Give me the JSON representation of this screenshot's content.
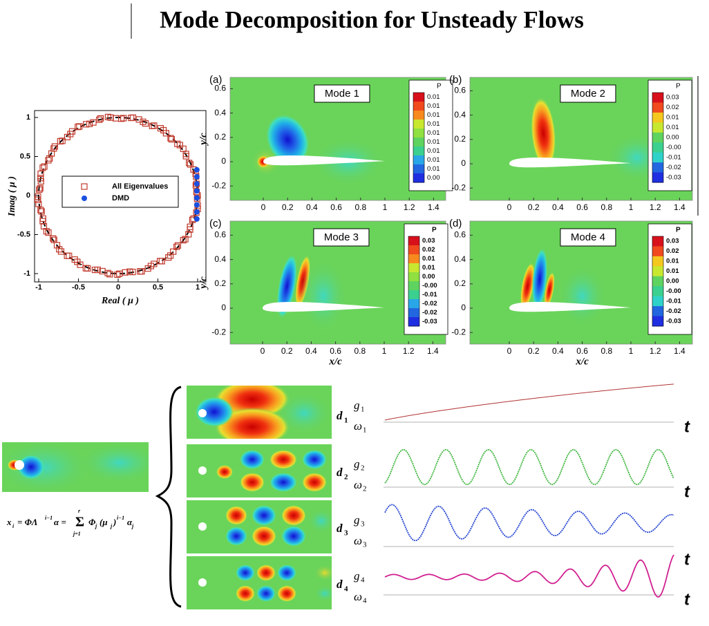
{
  "title": "Mode Decomposition for Unsteady Flows",
  "eig_plot": {
    "y_label": "Imag ( μ )",
    "x_label": "Real ( μ )",
    "xticks": [
      "-1",
      "-0.5",
      "0",
      "0.5",
      "1"
    ],
    "yticks": [
      "1",
      "0.5",
      "0",
      "-0.5",
      "-1"
    ],
    "legend": [
      "All Eigenvalues",
      "DMD"
    ]
  },
  "modes": {
    "y_label": "y/c",
    "x_label": "x/c",
    "xticks": [
      "0",
      "0.2",
      "0.4",
      "0.6",
      "0.8",
      "1",
      "1.2",
      "1.4"
    ],
    "yticks": [
      "0.6",
      "0.4",
      "0.2",
      "0",
      "-0.2"
    ],
    "panels": [
      {
        "tag": "(a)",
        "name": "Mode 1",
        "colorbar_title": "P",
        "colorbar": [
          "0.01",
          "0.01",
          "0.01",
          "0.01",
          "0.01",
          "0.01",
          "0.01",
          "0.01",
          "0.01",
          "0.00"
        ]
      },
      {
        "tag": "(b)",
        "name": "Mode 2",
        "colorbar_title": "P",
        "colorbar": [
          "0.03",
          "0.02",
          "0.01",
          "0.01",
          "0.00",
          "-0.00",
          "-0.01",
          "-0.02",
          "-0.03"
        ]
      },
      {
        "tag": "(c)",
        "name": "Mode 3",
        "colorbar_title": "P",
        "colorbar": [
          "0.03",
          "0.02",
          "0.01",
          "0.01",
          "0.00",
          "-0.00",
          "-0.01",
          "-0.02",
          "-0.02",
          "-0.03"
        ]
      },
      {
        "tag": "(d)",
        "name": "Mode 4",
        "colorbar_title": "P",
        "colorbar": [
          "0.03",
          "0.02",
          "0.01",
          "0.01",
          "0.00",
          "-0.00",
          "-0.01",
          "-0.02",
          "-0.03"
        ]
      }
    ]
  },
  "formula": {
    "x": "x",
    "i": "i",
    "eq1": "= ΦΛ",
    "exp1": "i−1",
    "alpha": "α =",
    "sum": "Σ",
    "sum_top": "r",
    "sum_bottom": "j=1",
    "phi": "Φ",
    "j": "j",
    "mu": "(μ",
    "close": ")",
    "exp2": "i−1",
    "alpha2": "α"
  },
  "decomposition": [
    {
      "d": "d",
      "index": "1",
      "g": "g",
      "omega": "ω",
      "t": "t"
    },
    {
      "d": "d",
      "index": "2",
      "g": "g",
      "omega": "ω",
      "t": "t"
    },
    {
      "d": "d",
      "index": "3",
      "g": "g",
      "omega": "ω",
      "t": "t"
    },
    {
      "d": "d",
      "index": "4",
      "g": "g",
      "omega": "ω",
      "t": "t"
    }
  ]
}
